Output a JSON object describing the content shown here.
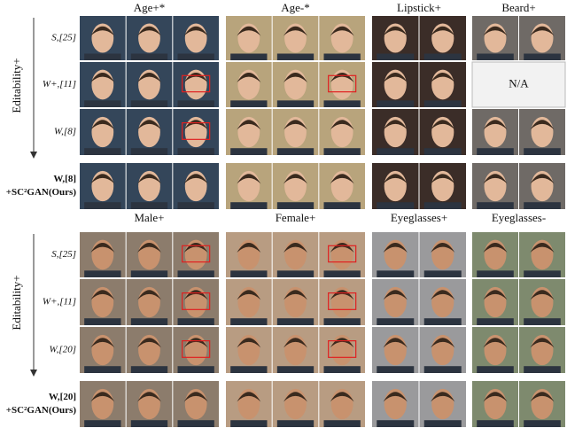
{
  "top": {
    "columns": [
      "Age+*",
      "Age-*",
      "Lipstick+",
      "Beard+"
    ],
    "rows": [
      [
        "S,[25]"
      ],
      [
        "W+,[11]"
      ],
      [
        "W,[8]"
      ],
      [
        "W,[8]",
        "+SC²GAN(Ours)"
      ]
    ],
    "na": "N/A",
    "axis_label": "Editability+"
  },
  "bottom": {
    "columns": [
      "Male+",
      "Female+",
      "Eyeglasses+",
      "Eyeglasses-"
    ],
    "rows": [
      [
        "S,[25]"
      ],
      [
        "W+,[11]"
      ],
      [
        "W,[20]"
      ],
      [
        "W,[20]",
        "+SC²GAN(Ours)"
      ]
    ],
    "axis_label": "Editability+"
  }
}
